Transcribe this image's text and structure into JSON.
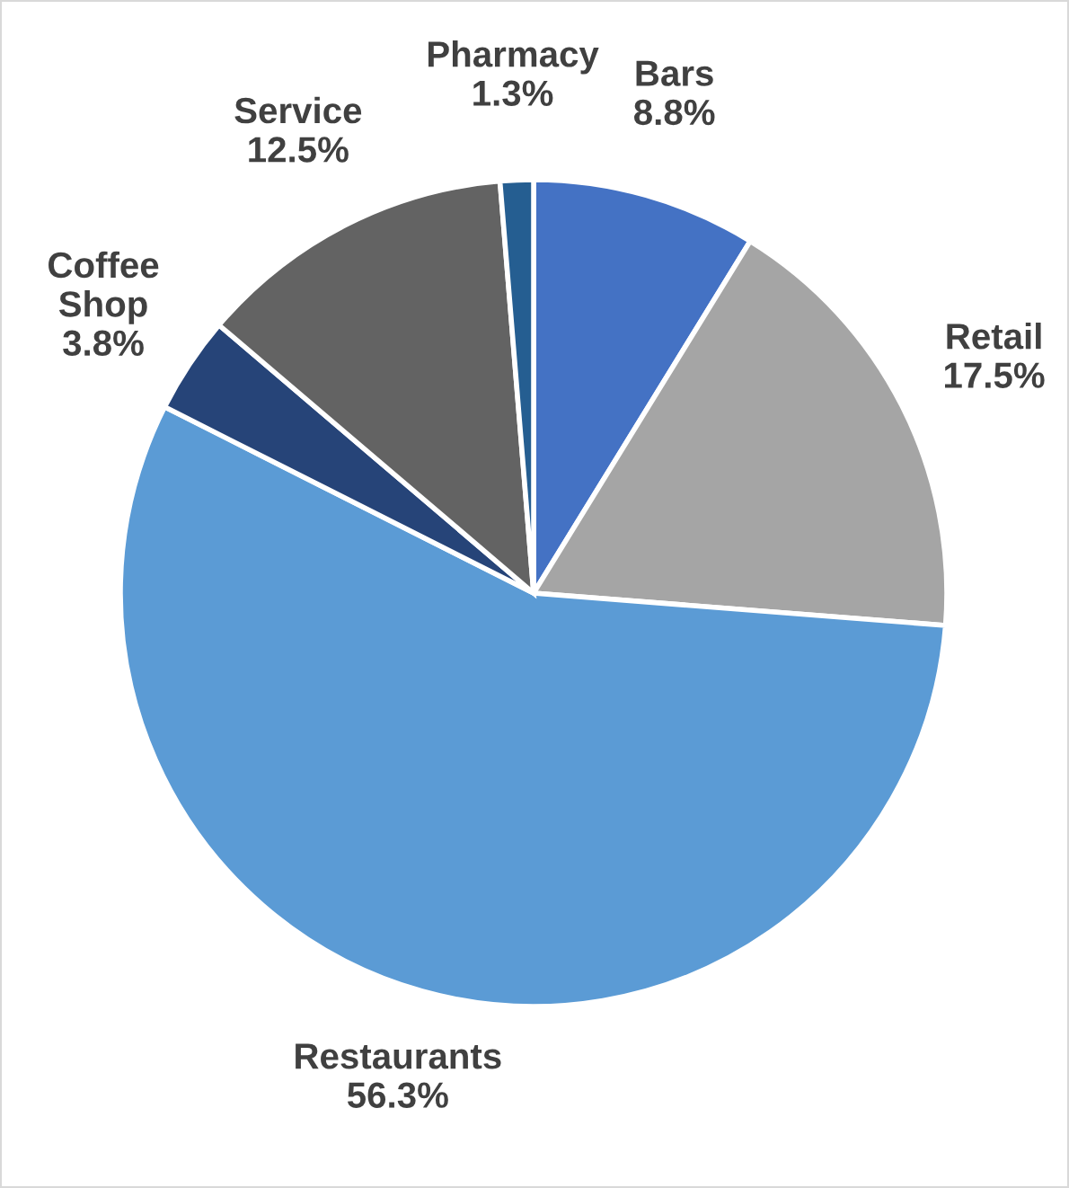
{
  "chart_data": {
    "type": "pie",
    "categories": [
      "Bars",
      "Retail",
      "Restaurants",
      "Coffee Shop",
      "Service",
      "Pharmacy"
    ],
    "values": [
      8.8,
      17.5,
      56.3,
      3.8,
      12.5,
      1.3
    ],
    "colors": [
      "#4472c4",
      "#a5a5a5",
      "#5b9bd5",
      "#264478",
      "#636363",
      "#255e91"
    ],
    "value_labels": [
      "8.8%",
      "17.5%",
      "56.3%",
      "3.8%",
      "12.5%",
      "1.3%"
    ],
    "legend": false
  }
}
